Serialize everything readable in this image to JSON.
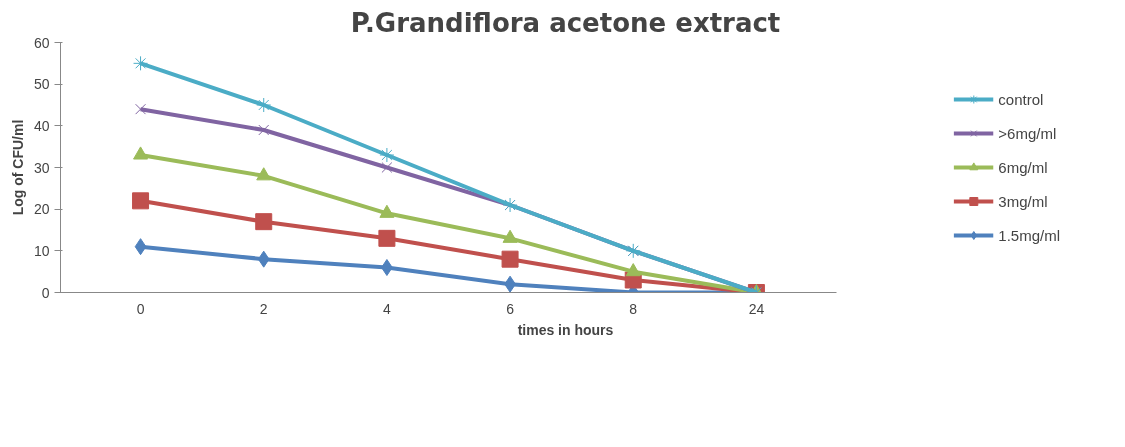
{
  "chart_data": {
    "type": "line",
    "title": "P.Grandiflora acetone extract",
    "xlabel": "times in hours",
    "ylabel": "Log of CFU/ml",
    "categories": [
      "0",
      "2",
      "4",
      "6",
      "8",
      "24"
    ],
    "series": [
      {
        "name": "control",
        "color": "#4bacc6",
        "marker": "cross",
        "values": [
          55,
          45,
          33,
          21,
          10,
          0
        ]
      },
      {
        "name": ">6mg/ml",
        "color": "#8064a2",
        "marker": "x",
        "values": [
          44,
          39,
          30,
          21,
          10,
          0
        ]
      },
      {
        "name": "6mg/ml",
        "color": "#9bbb59",
        "marker": "triangle",
        "values": [
          33,
          28,
          19,
          13,
          5,
          0
        ]
      },
      {
        "name": "3mg/ml",
        "color": "#c0504d",
        "marker": "square",
        "values": [
          22,
          17,
          13,
          8,
          3,
          0
        ]
      },
      {
        "name": "1.5mg/ml",
        "color": "#4f81bd",
        "marker": "diamond",
        "values": [
          11,
          8,
          6,
          2,
          0,
          0
        ]
      }
    ],
    "ylim": [
      0,
      60
    ],
    "yticks": [
      0,
      10,
      20,
      30,
      40,
      50,
      60
    ],
    "grid": false,
    "legend": "right"
  }
}
